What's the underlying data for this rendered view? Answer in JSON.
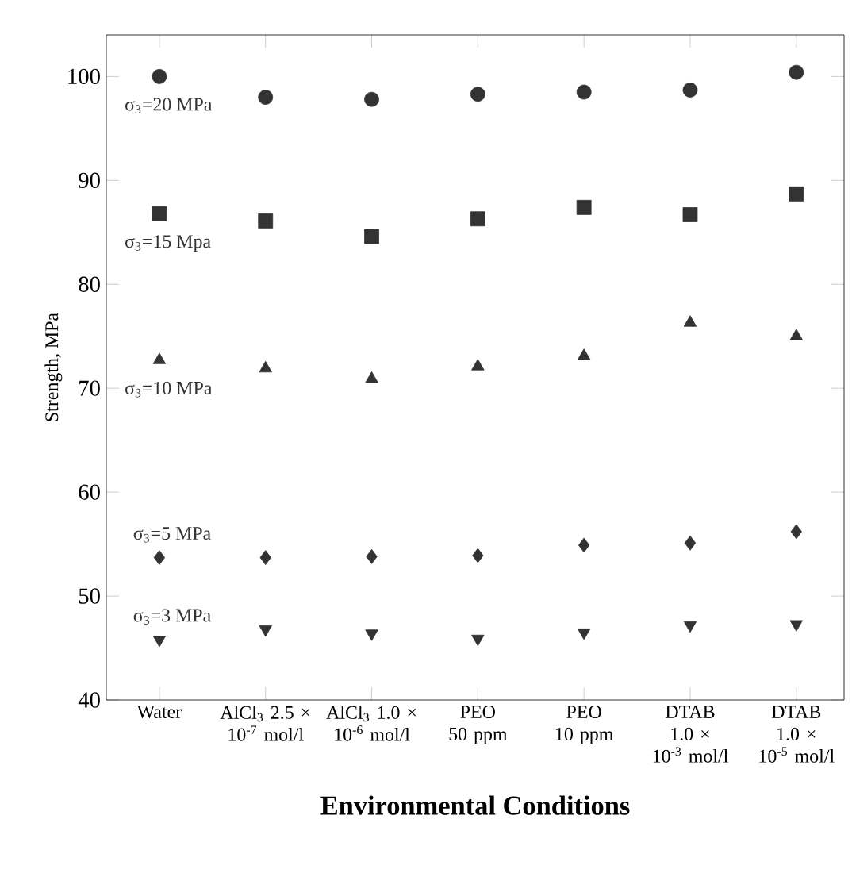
{
  "chart_data": {
    "type": "scatter",
    "xlabel": "Environmental Conditions",
    "ylabel": "Strength, MPa",
    "categories": [
      "Water",
      "AlCl$_{3}$ 2.5 × 10$^{-7}$ mol/l",
      "AlCl$_{3}$ 1.0 × 10$^{-6}$ mol/l",
      "PEO 50 ppm",
      "PEO 10 ppm",
      "DTAB 1.0 × 10$^{-3}$ mol/l",
      "DTAB 1.0 × 10$^{-5}$ mol/l"
    ],
    "ylim": [
      40,
      104
    ],
    "yticks": [
      40,
      50,
      60,
      70,
      80,
      90,
      100
    ],
    "grid": false,
    "legend": false,
    "series": [
      {
        "name": "σ$_{3}$=20 MPa",
        "color": "#333333",
        "marker": "circle",
        "values": [
          100.0,
          98.0,
          97.8,
          98.3,
          98.5,
          98.7,
          100.4
        ]
      },
      {
        "name": "σ$_{3}$=15 Mpa",
        "color": "#333333",
        "marker": "square",
        "values": [
          86.8,
          86.1,
          84.6,
          86.3,
          87.4,
          86.7,
          88.7
        ]
      },
      {
        "name": "σ$_{3}$=10 MPa",
        "color": "#333333",
        "marker": "triangle",
        "values": [
          72.7,
          71.9,
          70.9,
          72.1,
          73.1,
          76.3,
          75.0
        ]
      },
      {
        "name": "σ$_{3}$=5 MPa",
        "color": "#333333",
        "marker": "diamond",
        "values": [
          53.7,
          53.7,
          53.8,
          53.9,
          54.9,
          55.1,
          56.2
        ]
      },
      {
        "name": "σ$_{3}$=3 MPa",
        "color": "#333333",
        "marker": "triangle-down",
        "values": [
          45.8,
          46.8,
          46.4,
          45.9,
          46.5,
          47.2,
          47.3
        ]
      }
    ]
  }
}
